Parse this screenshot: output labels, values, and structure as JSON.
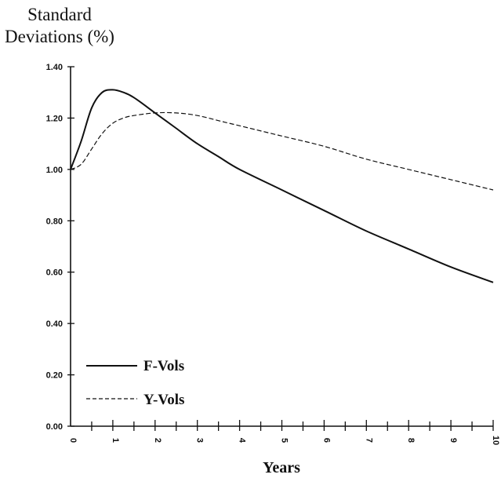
{
  "chart_data": {
    "type": "line",
    "ylabel_lines": [
      "Standard",
      "Deviations (%)"
    ],
    "xlabel": "Years",
    "xlim": [
      0,
      10
    ],
    "ylim": [
      0,
      1.4
    ],
    "xticks": [
      "0",
      "1",
      "2",
      "3",
      "4",
      "5",
      "6",
      "7",
      "8",
      "9",
      "10"
    ],
    "yticks": [
      "0.00",
      "0.20",
      "0.40",
      "0.60",
      "0.80",
      "1.00",
      "1.20",
      "1.40"
    ],
    "grid": false,
    "legend_position": "bottom-left",
    "series": [
      {
        "name": "F-Vols",
        "style": "solid",
        "color": "#111111",
        "x": [
          0,
          0.25,
          0.5,
          0.75,
          1,
          1.25,
          1.5,
          2,
          2.5,
          3,
          3.5,
          4,
          5,
          6,
          7,
          8,
          9,
          10
        ],
        "y": [
          1.0,
          1.11,
          1.24,
          1.3,
          1.31,
          1.3,
          1.28,
          1.22,
          1.16,
          1.1,
          1.05,
          1.0,
          0.92,
          0.84,
          0.76,
          0.69,
          0.62,
          0.56
        ]
      },
      {
        "name": "Y-Vols",
        "style": "dashed",
        "color": "#111111",
        "x": [
          0,
          0.25,
          0.5,
          0.75,
          1,
          1.25,
          1.5,
          2,
          2.5,
          3,
          3.5,
          4,
          5,
          6,
          7,
          8,
          9,
          10
        ],
        "y": [
          1.0,
          1.02,
          1.08,
          1.14,
          1.18,
          1.2,
          1.21,
          1.22,
          1.22,
          1.21,
          1.19,
          1.17,
          1.13,
          1.09,
          1.04,
          1.0,
          0.96,
          0.92
        ]
      }
    ]
  }
}
